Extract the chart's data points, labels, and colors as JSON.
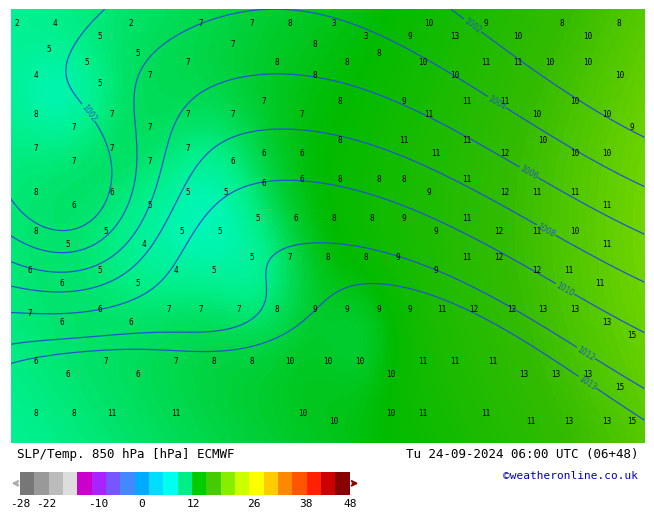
{
  "title_left": "SLP/Temp. 850 hPa [hPa] ECMWF",
  "title_right": "Tu 24-09-2024 06:00 UTC (06+48)",
  "credit": "©weatheronline.co.uk",
  "colorbar_values": [
    -28,
    -22,
    -10,
    0,
    12,
    26,
    38,
    48
  ],
  "bg_color": "#ffffff",
  "text_color": "#000000",
  "credit_color": "#0000cc",
  "colorbar_tick_fontsize": 8,
  "label_fontsize": 9,
  "credit_fontsize": 8,
  "cbar_colors": [
    "#888888",
    "#aaaaaa",
    "#cccccc",
    "#cc00cc",
    "#aa00ff",
    "#7744ff",
    "#4488ff",
    "#00bbff",
    "#00ffee",
    "#00ee88",
    "#00cc00",
    "#44cc00",
    "#88ff00",
    "#ccff00",
    "#ffff00",
    "#ffcc00",
    "#ff8800",
    "#ff4400",
    "#cc0000",
    "#880000"
  ],
  "vmin": -28,
  "vmax": 48,
  "cmap_stops": [
    [
      0.0,
      "#555555"
    ],
    [
      0.03,
      "#888888"
    ],
    [
      0.06,
      "#bbbbbb"
    ],
    [
      0.09,
      "#dddddd"
    ],
    [
      0.13,
      "#cc00cc"
    ],
    [
      0.18,
      "#aa00ff"
    ],
    [
      0.23,
      "#5544ff"
    ],
    [
      0.29,
      "#0088ff"
    ],
    [
      0.34,
      "#00ccff"
    ],
    [
      0.39,
      "#00ffee"
    ],
    [
      0.44,
      "#00ee88"
    ],
    [
      0.49,
      "#00bb00"
    ],
    [
      0.53,
      "#33bb00"
    ],
    [
      0.57,
      "#88dd00"
    ],
    [
      0.61,
      "#ccff00"
    ],
    [
      0.65,
      "#ffff00"
    ],
    [
      0.71,
      "#ffcc00"
    ],
    [
      0.77,
      "#ff8800"
    ],
    [
      0.83,
      "#ff4400"
    ],
    [
      0.89,
      "#cc0000"
    ],
    [
      0.95,
      "#880000"
    ],
    [
      1.0,
      "#440000"
    ]
  ]
}
